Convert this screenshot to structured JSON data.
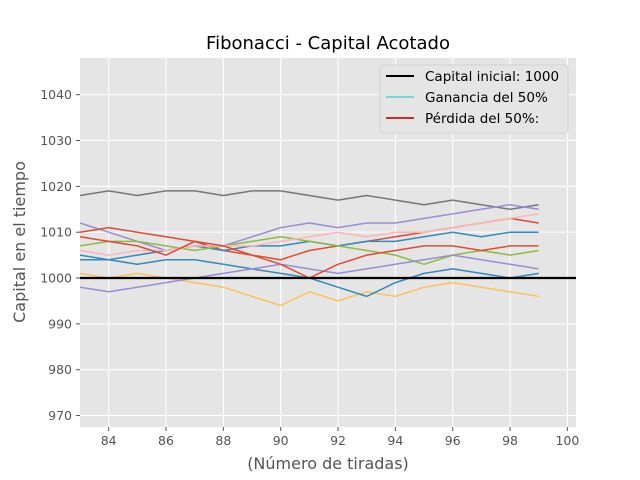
{
  "chart_data": {
    "type": "line",
    "title": "Fibonacci - Capital Acotado",
    "xlabel": "(Número de tiradas)",
    "ylabel": "Capital en el tiempo",
    "xlim": [
      83,
      100.3
    ],
    "ylim": [
      967.5,
      1048
    ],
    "xticks": [
      "84",
      "86",
      "88",
      "90",
      "92",
      "94",
      "96",
      "98",
      "100"
    ],
    "yticks": [
      "970",
      "980",
      "990",
      "1000",
      "1010",
      "1020",
      "1030",
      "1040"
    ],
    "grid": true,
    "legend_position": "top-right",
    "legend": [
      {
        "label": "Capital inicial: 1000",
        "color": "#000000"
      },
      {
        "label": "Ganancia del 50%",
        "color": "#17becf"
      },
      {
        "label": "Pérdida del 50%:",
        "color": "#d62728"
      }
    ],
    "baseline": {
      "y": 1000,
      "color": "#000000"
    },
    "x": [
      83,
      84,
      85,
      86,
      87,
      88,
      89,
      90,
      91,
      92,
      93,
      94,
      95,
      96,
      97,
      98,
      99
    ],
    "series": [
      {
        "color": "#777777",
        "values": [
          1018,
          1019,
          1018,
          1019,
          1019,
          1018,
          1019,
          1019,
          1018,
          1017,
          1018,
          1017,
          1016,
          1017,
          1016,
          1015,
          1016
        ]
      },
      {
        "color": "#988ed5",
        "values": [
          1012,
          1010,
          1008,
          1006,
          1007,
          1007,
          1009,
          1011,
          1012,
          1011,
          1012,
          1012,
          1013,
          1014,
          1015,
          1016,
          1015
        ]
      },
      {
        "color": "#e24a33",
        "values": [
          1010,
          1011,
          1010,
          1009,
          1008,
          1006,
          1005,
          1004,
          1006,
          1007,
          1008,
          1009,
          1010,
          1011,
          1012,
          1013,
          1012
        ]
      },
      {
        "color": "#fbc15e",
        "values": [
          1001,
          1000,
          1001,
          1000,
          999,
          998,
          996,
          994,
          997,
          995,
          997,
          996,
          998,
          999,
          998,
          997,
          996
        ]
      },
      {
        "color": "#348abd",
        "values": [
          1005,
          1004,
          1005,
          1006,
          1007,
          1006,
          1007,
          1007,
          1008,
          1007,
          1008,
          1008,
          1009,
          1010,
          1009,
          1010,
          1010
        ]
      },
      {
        "color": "#8eba42",
        "values": [
          1007,
          1008,
          1008,
          1007,
          1006,
          1007,
          1008,
          1009,
          1008,
          1007,
          1006,
          1005,
          1003,
          1005,
          1006,
          1005,
          1006
        ]
      },
      {
        "color": "#ffb5b8",
        "values": [
          1006,
          1005,
          1006,
          1006,
          1007,
          1007,
          1007,
          1008,
          1009,
          1010,
          1009,
          1010,
          1010,
          1011,
          1012,
          1013,
          1014
        ]
      },
      {
        "color": "#348abd",
        "values": [
          1004,
          1004,
          1003,
          1004,
          1004,
          1003,
          1002,
          1001,
          1000,
          998,
          996,
          999,
          1001,
          1002,
          1001,
          1000,
          1001
        ]
      },
      {
        "color": "#988ed5",
        "values": [
          998,
          997,
          998,
          999,
          1000,
          1001,
          1002,
          1003,
          1002,
          1001,
          1002,
          1003,
          1004,
          1005,
          1004,
          1003,
          1002
        ]
      },
      {
        "color": "#e24a33",
        "values": [
          1009,
          1008,
          1007,
          1005,
          1008,
          1007,
          1005,
          1003,
          1000,
          1003,
          1005,
          1006,
          1007,
          1007,
          1006,
          1007,
          1007
        ]
      }
    ]
  },
  "colors": {
    "plot_background": "#e5e5e5",
    "grid": "#ffffff",
    "text": "#555555"
  }
}
